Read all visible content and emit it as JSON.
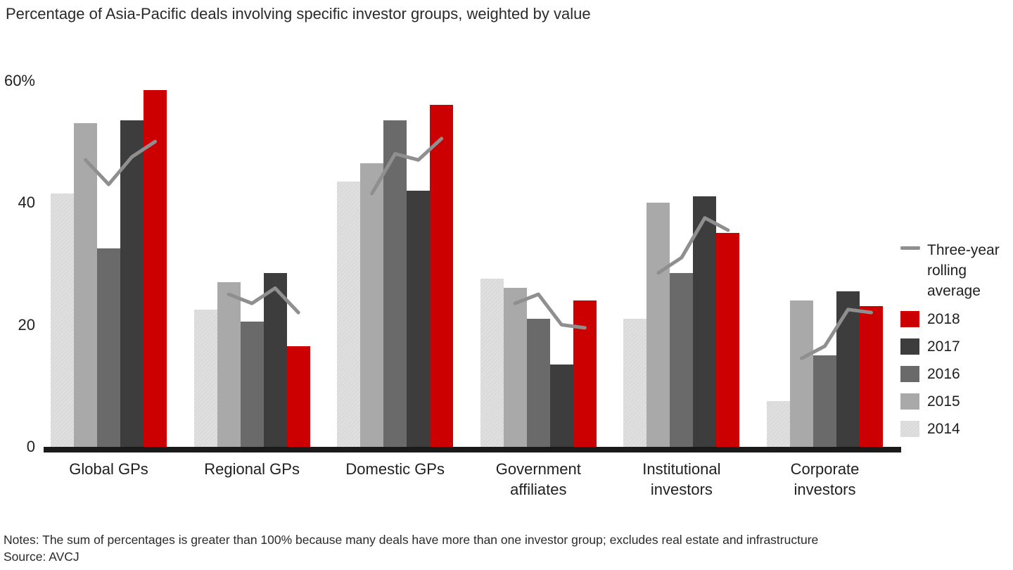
{
  "title": "Percentage of Asia-Pacific deals involving specific investor groups, weighted by value",
  "y_axis": {
    "unit": "%",
    "ticks": [
      {
        "value": 60,
        "label": "60%"
      },
      {
        "value": 40,
        "label": "40"
      },
      {
        "value": 20,
        "label": "20"
      },
      {
        "value": 0,
        "label": "0"
      }
    ]
  },
  "chart_data": {
    "type": "bar",
    "subtype": "grouped-bars-with-rolling-average-line",
    "title": "Percentage of Asia-Pacific deals involving specific investor groups, weighted by value",
    "ylim": [
      0,
      60
    ],
    "grid": false,
    "legend_position": "right",
    "categories": [
      "Global GPs",
      "Regional GPs",
      "Domestic GPs",
      "Government affiliates",
      "Institutional investors",
      "Corporate investors"
    ],
    "series": [
      {
        "name": "2014",
        "color": "#dcdcdc",
        "values": [
          41.5,
          22.5,
          43.5,
          27.5,
          21,
          7.5
        ]
      },
      {
        "name": "2015",
        "color": "#a9a9a9",
        "values": [
          53,
          27,
          46.5,
          26,
          40,
          24
        ]
      },
      {
        "name": "2016",
        "color": "#6a6a6a",
        "values": [
          32.5,
          20.5,
          53.5,
          21,
          28.5,
          15
        ]
      },
      {
        "name": "2017",
        "color": "#3d3d3d",
        "values": [
          53.5,
          28.5,
          42,
          13.5,
          41,
          25.5
        ]
      },
      {
        "name": "2018",
        "color": "#cc0000",
        "values": [
          58.5,
          16.5,
          56,
          24,
          35,
          23
        ]
      }
    ],
    "line_series": {
      "name": "Three-year rolling average",
      "color": "#8f8f8f",
      "years": [
        "2015",
        "2016",
        "2017",
        "2018"
      ],
      "values_by_category": [
        [
          47,
          43,
          47.5,
          50
        ],
        [
          25,
          23.5,
          26,
          22
        ],
        [
          41.5,
          48,
          47,
          50.5
        ],
        [
          23.5,
          25,
          20,
          19.5
        ],
        [
          28.5,
          31,
          37.5,
          35.5
        ],
        [
          14.5,
          16.5,
          22.5,
          22
        ]
      ]
    }
  },
  "legend": {
    "line_label": "Three-year rolling average",
    "items": [
      {
        "label": "2018",
        "color": "#cc0000"
      },
      {
        "label": "2017",
        "color": "#3d3d3d"
      },
      {
        "label": "2016",
        "color": "#6a6a6a"
      },
      {
        "label": "2015",
        "color": "#a9a9a9"
      },
      {
        "label": "2014",
        "color": "#dcdcdc"
      }
    ]
  },
  "notes": "Notes: The sum of percentages is greater than 100% because many deals have more than one investor group; excludes real estate and infrastructure",
  "source": "Source: AVCJ"
}
